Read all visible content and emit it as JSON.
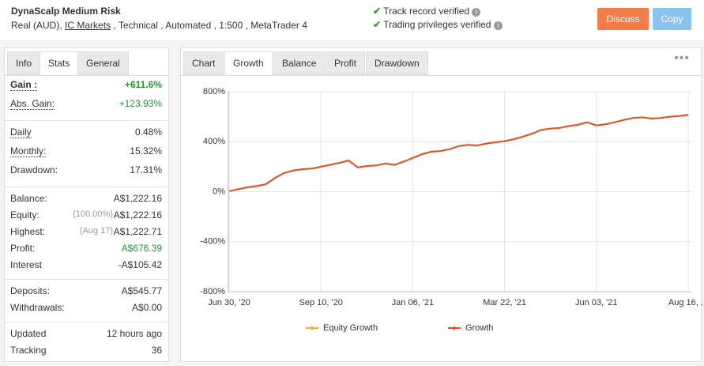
{
  "header": {
    "title": "DynaScalp Medium Risk",
    "info_prefix": "Real (AUD),",
    "broker": "IC Markets",
    "info_suffix": ", Technical , Automated , 1:500 , MetaTrader 4",
    "verifications": [
      "Track record verified",
      "Trading privileges verified"
    ],
    "buttons": [
      "Discuss",
      "Copy"
    ]
  },
  "left_tabs": {
    "tabs": [
      "Info",
      "Stats",
      "General"
    ],
    "active": 1
  },
  "stats": [
    [
      {
        "label": "Gain :",
        "value": "+611.6%",
        "color": "#1e9a2c",
        "bold": true,
        "underline": true
      },
      {
        "label": "Abs. Gain:",
        "value": "+123.93%",
        "color": "#1e9a2c",
        "underline": true
      }
    ],
    [
      {
        "label": "Daily",
        "value": "0.48%",
        "underline": true
      },
      {
        "label": "Monthly:",
        "value": "15.32%",
        "underline": true
      },
      {
        "label": "Drawdown:",
        "value": "17.31%"
      }
    ],
    [
      {
        "label": "Balance:",
        "value": "A$1,222.16"
      },
      {
        "label": "Equity:",
        "note": "(100.00%)",
        "value": "A$1,222.16"
      },
      {
        "label": "Highest:",
        "note": "(Aug 17)",
        "value": "A$1,222.71"
      },
      {
        "label": "Profit:",
        "value": "A$676.39",
        "color": "#1e9a2c"
      },
      {
        "label": "Interest",
        "value": "-A$105.42"
      }
    ],
    [
      {
        "label": "Deposits:",
        "value": "A$545.77"
      },
      {
        "label": "Withdrawals:",
        "value": "A$0.00"
      }
    ],
    [
      {
        "label": "Updated",
        "value": "12 hours ago"
      },
      {
        "label": "Tracking",
        "value": "36"
      }
    ]
  ],
  "chart_tabs": {
    "tabs": [
      "Chart",
      "Growth",
      "Balance",
      "Profit",
      "Drawdown"
    ],
    "active": 1
  },
  "chart_data": {
    "type": "line",
    "categories": [
      "Jun 30, '20",
      null,
      null,
      null,
      null,
      null,
      null,
      null,
      null,
      null,
      "Sep 10, '20",
      null,
      null,
      null,
      null,
      null,
      null,
      null,
      null,
      null,
      "Jan 06, '21",
      null,
      null,
      null,
      null,
      null,
      null,
      null,
      null,
      null,
      "Mar 22, '21",
      null,
      null,
      null,
      null,
      null,
      null,
      null,
      null,
      null,
      "Jun 03, '21",
      null,
      null,
      null,
      null,
      null,
      null,
      null,
      null,
      null,
      "Aug 16, ..."
    ],
    "series": [
      {
        "name": "Equity Growth",
        "color": "#f0a830",
        "values": [
          5,
          20,
          35,
          45,
          60,
          110,
          150,
          170,
          180,
          185,
          200,
          215,
          230,
          250,
          195,
          205,
          210,
          225,
          215,
          240,
          270,
          300,
          320,
          325,
          340,
          365,
          375,
          370,
          385,
          395,
          405,
          420,
          440,
          465,
          495,
          505,
          510,
          525,
          535,
          555,
          530,
          540,
          555,
          575,
          590,
          595,
          585,
          590,
          600,
          605,
          615
        ]
      },
      {
        "name": "Growth",
        "color": "#e0502a",
        "values": [
          5,
          20,
          35,
          45,
          60,
          110,
          150,
          170,
          180,
          185,
          200,
          215,
          230,
          250,
          195,
          205,
          210,
          225,
          215,
          240,
          270,
          300,
          320,
          325,
          340,
          365,
          375,
          370,
          385,
          395,
          405,
          420,
          440,
          465,
          495,
          505,
          510,
          525,
          535,
          555,
          530,
          540,
          555,
          575,
          590,
          595,
          585,
          590,
          600,
          605,
          615
        ]
      }
    ],
    "ylim": [
      -800,
      800
    ],
    "yticks": [
      {
        "value": -800,
        "label": "-800%"
      },
      {
        "value": -400,
        "label": "-400%"
      },
      {
        "value": 0,
        "label": "0%"
      },
      {
        "value": 400,
        "label": "400%"
      },
      {
        "value": 800,
        "label": "800%"
      }
    ],
    "grid": true
  }
}
